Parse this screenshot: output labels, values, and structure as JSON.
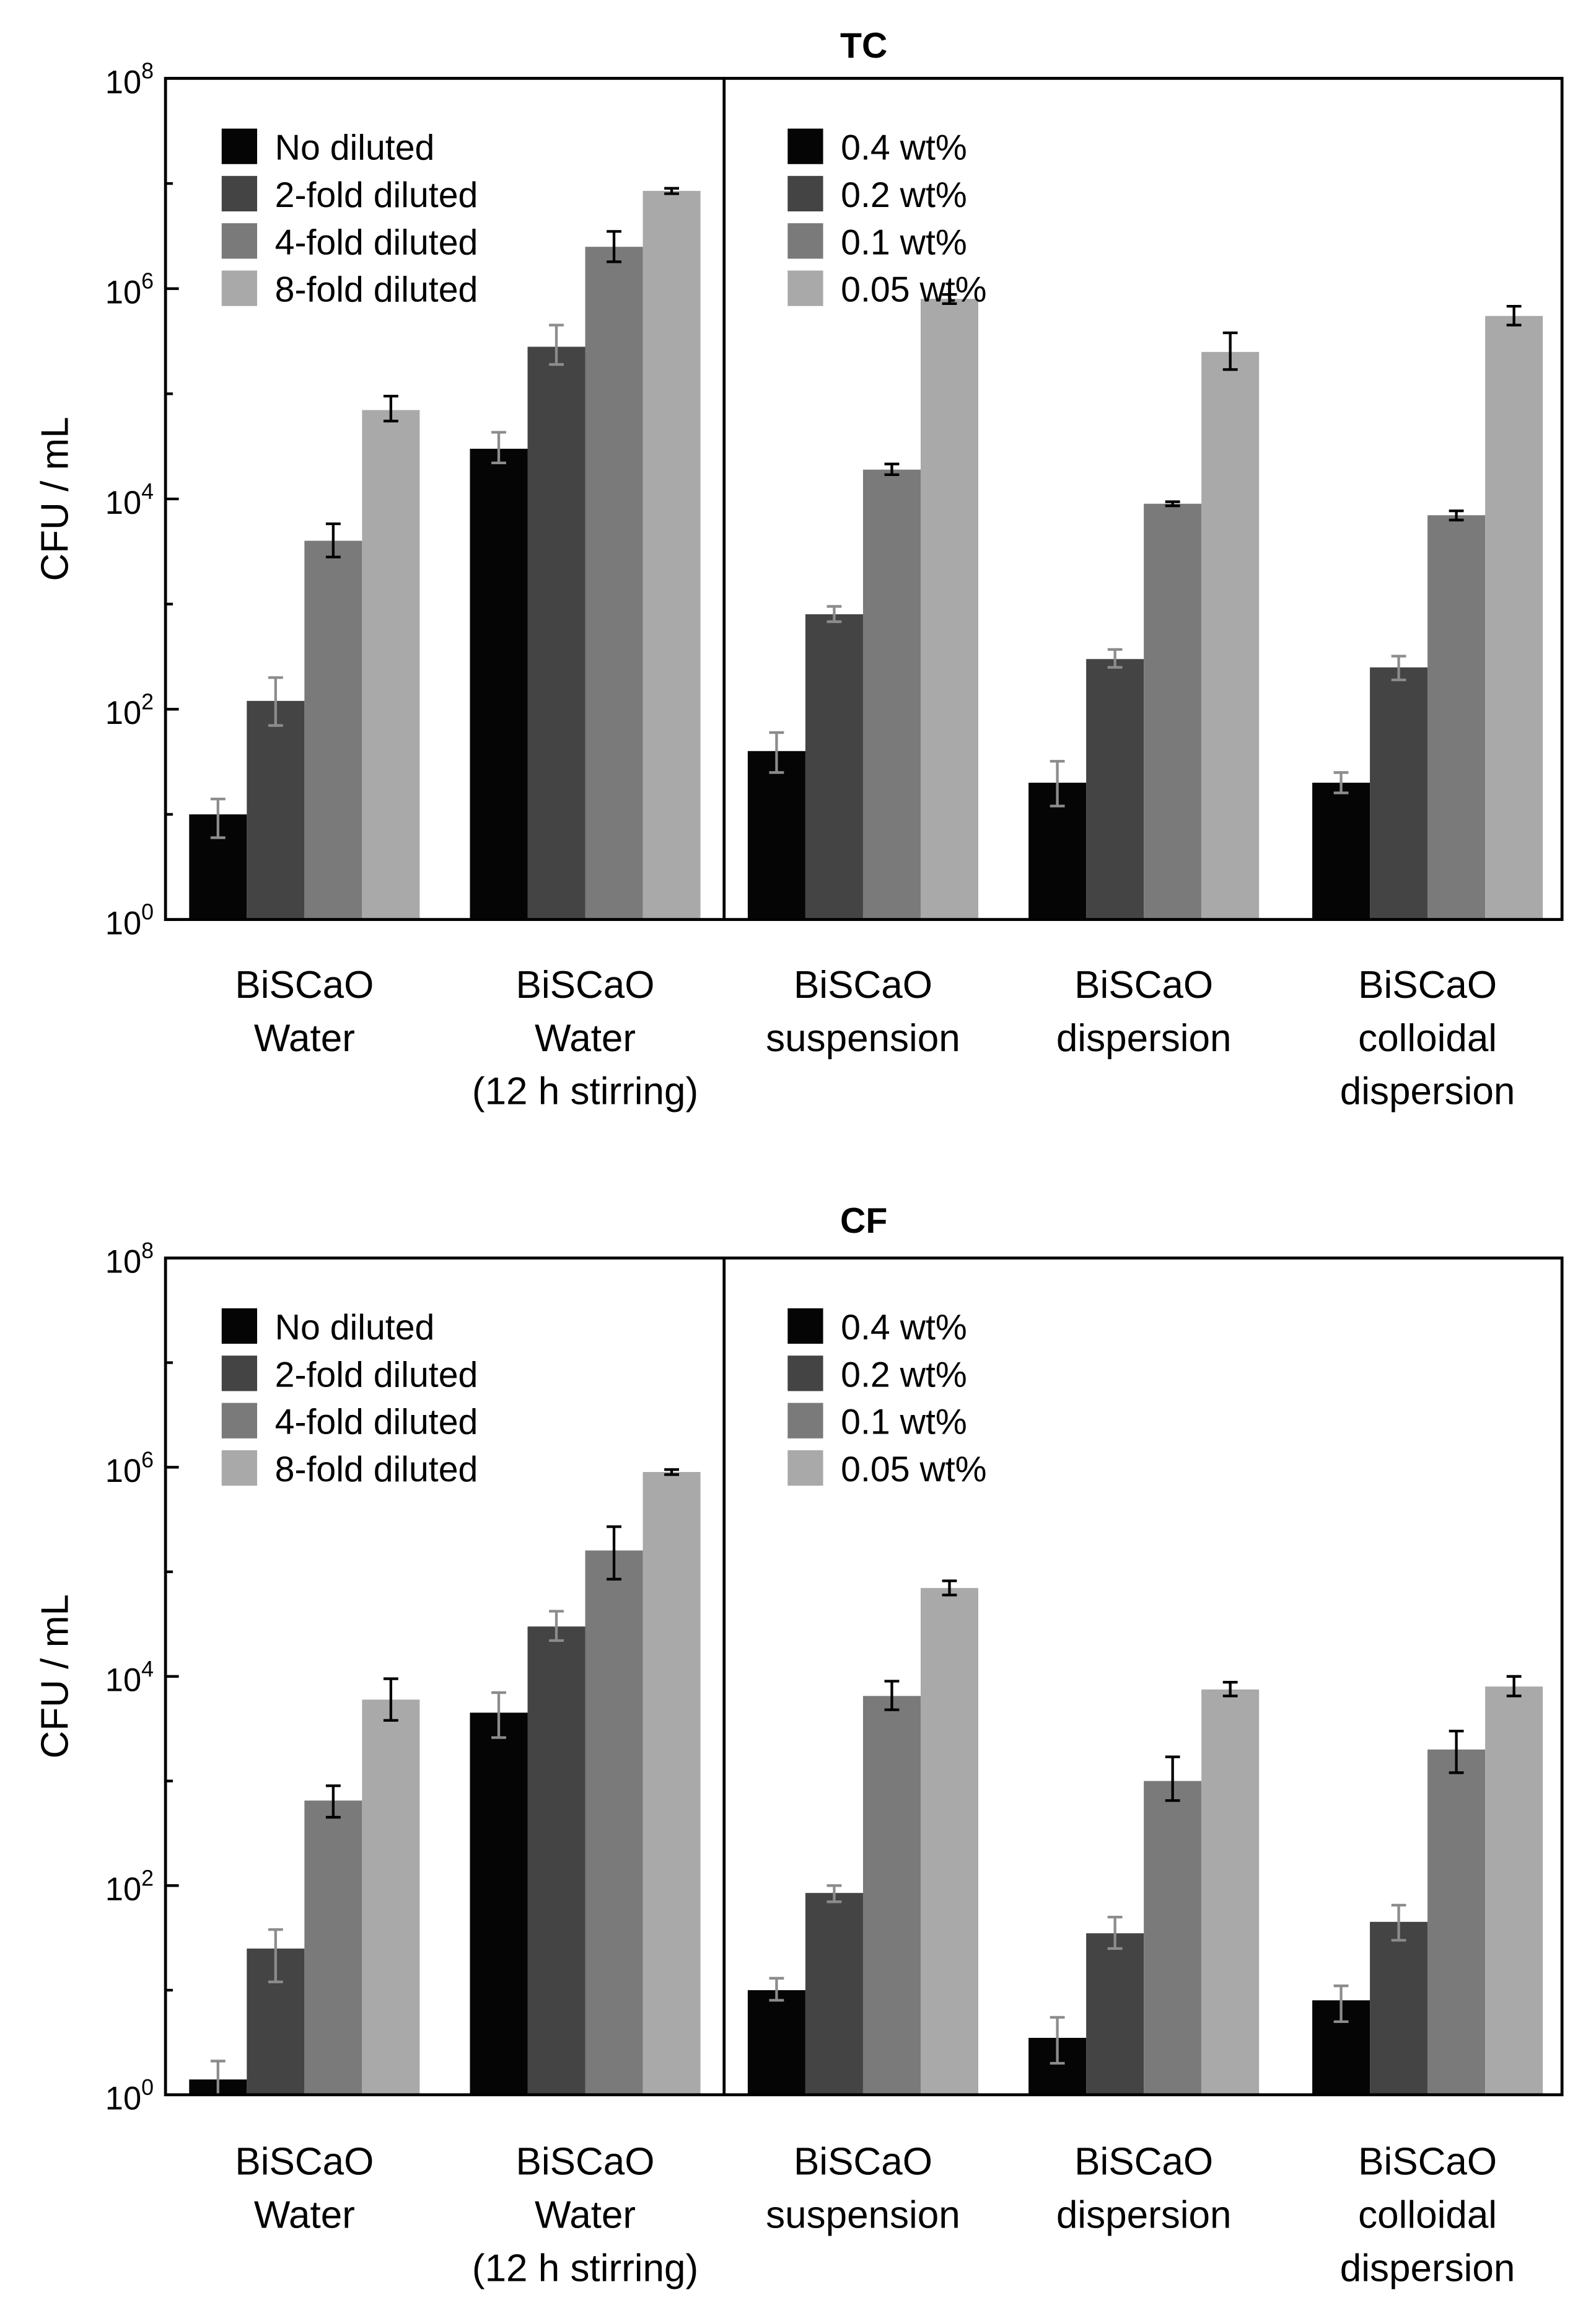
{
  "chart_data": [
    {
      "type": "bar",
      "title": "TC",
      "ylabel": "CFU / mL",
      "yscale": "log",
      "ylim": [
        1,
        100000000
      ],
      "yticks": [
        {
          "value": 1,
          "base": "10",
          "exp": "0"
        },
        {
          "value": 100,
          "base": "10",
          "exp": "2"
        },
        {
          "value": 10000,
          "base": "10",
          "exp": "4"
        },
        {
          "value": 1000000,
          "base": "10",
          "exp": "6"
        },
        {
          "value": 100000000,
          "base": "10",
          "exp": "8"
        }
      ],
      "categories": [
        [
          "BiSCaO",
          "Water"
        ],
        [
          "BiSCaO",
          "Water",
          "(12 h stirring)"
        ],
        [
          "BiSCaO",
          "suspension"
        ],
        [
          "BiSCaO",
          "dispersion"
        ],
        [
          "BiSCaO",
          "colloidal",
          "dispersion"
        ]
      ],
      "legends": [
        {
          "entries": [
            "No diluted",
            "2-fold diluted",
            "4-fold diluted",
            "8-fold diluted"
          ]
        },
        {
          "entries": [
            "0.4 wt%",
            "0.2 wt%",
            "0.1 wt%",
            "0.05 wt%"
          ]
        }
      ],
      "colors": [
        "#050505",
        "#444444",
        "#7a7a7a",
        "#a9a9a9"
      ],
      "errorbar_colors": [
        "#8c8c8c",
        "#8c8c8c",
        "#000000",
        "#000000"
      ],
      "values": [
        [
          10,
          120,
          4000,
          70000
        ],
        [
          30000,
          280000,
          2500000,
          8500000
        ],
        [
          40,
          800,
          19000,
          800000
        ],
        [
          20,
          300,
          9000,
          250000
        ],
        [
          20,
          250,
          7000,
          550000
        ]
      ],
      "errors": [
        [
          [
            6,
            14
          ],
          [
            70,
            200
          ],
          [
            2800,
            5800
          ],
          [
            55000,
            95000
          ]
        ],
        [
          [
            22000,
            43000
          ],
          [
            190000,
            450000
          ],
          [
            1800000,
            3500000
          ],
          [
            8000000,
            9000000
          ]
        ],
        [
          [
            25,
            60
          ],
          [
            680,
            950
          ],
          [
            17000,
            21500
          ],
          [
            720000,
            880000
          ]
        ],
        [
          [
            12,
            32
          ],
          [
            250,
            370
          ],
          [
            8600,
            9400
          ],
          [
            170000,
            380000
          ]
        ],
        [
          [
            16,
            25
          ],
          [
            190,
            320
          ],
          [
            6300,
            7700
          ],
          [
            450000,
            680000
          ]
        ]
      ]
    },
    {
      "type": "bar",
      "title": "CF",
      "ylabel": "CFU / mL",
      "yscale": "log",
      "ylim": [
        1,
        100000000
      ],
      "yticks": [
        {
          "value": 1,
          "base": "10",
          "exp": "0"
        },
        {
          "value": 100,
          "base": "10",
          "exp": "2"
        },
        {
          "value": 10000,
          "base": "10",
          "exp": "4"
        },
        {
          "value": 1000000,
          "base": "10",
          "exp": "6"
        },
        {
          "value": 100000000,
          "base": "10",
          "exp": "8"
        }
      ],
      "categories": [
        [
          "BiSCaO",
          "Water"
        ],
        [
          "BiSCaO",
          "Water",
          "(12 h stirring)"
        ],
        [
          "BiSCaO",
          "suspension"
        ],
        [
          "BiSCaO",
          "dispersion"
        ],
        [
          "BiSCaO",
          "colloidal",
          "dispersion"
        ]
      ],
      "legends": [
        {
          "entries": [
            "No diluted",
            "2-fold diluted",
            "4-fold diluted",
            "8-fold diluted"
          ]
        },
        {
          "entries": [
            "0.4 wt%",
            "0.2 wt%",
            "0.1 wt%",
            "0.05 wt%"
          ]
        }
      ],
      "colors": [
        "#050505",
        "#444444",
        "#7a7a7a",
        "#a9a9a9"
      ],
      "errorbar_colors": [
        "#8c8c8c",
        "#8c8c8c",
        "#000000",
        "#000000"
      ],
      "values": [
        [
          1.4,
          25,
          650,
          6000
        ],
        [
          4500,
          30000,
          160000,
          900000
        ],
        [
          10,
          85,
          6500,
          70000
        ],
        [
          3.5,
          35,
          1000,
          7500
        ],
        [
          8,
          45,
          2000,
          8000
        ]
      ],
      "errors": [
        [
          [
            1,
            2.1
          ],
          [
            12,
            38
          ],
          [
            450,
            900
          ],
          [
            3800,
            9500
          ]
        ],
        [
          [
            2600,
            7000
          ],
          [
            22000,
            42000
          ],
          [
            85000,
            270000
          ],
          [
            850000,
            950000
          ]
        ],
        [
          [
            8,
            13
          ],
          [
            70,
            100
          ],
          [
            4800,
            9000
          ],
          [
            60000,
            82000
          ]
        ],
        [
          [
            2,
            5.5
          ],
          [
            25,
            50
          ],
          [
            650,
            1700
          ],
          [
            6500,
            8800
          ]
        ],
        [
          [
            5,
            11
          ],
          [
            30,
            65
          ],
          [
            1200,
            3000
          ],
          [
            6500,
            10000
          ]
        ]
      ]
    }
  ]
}
